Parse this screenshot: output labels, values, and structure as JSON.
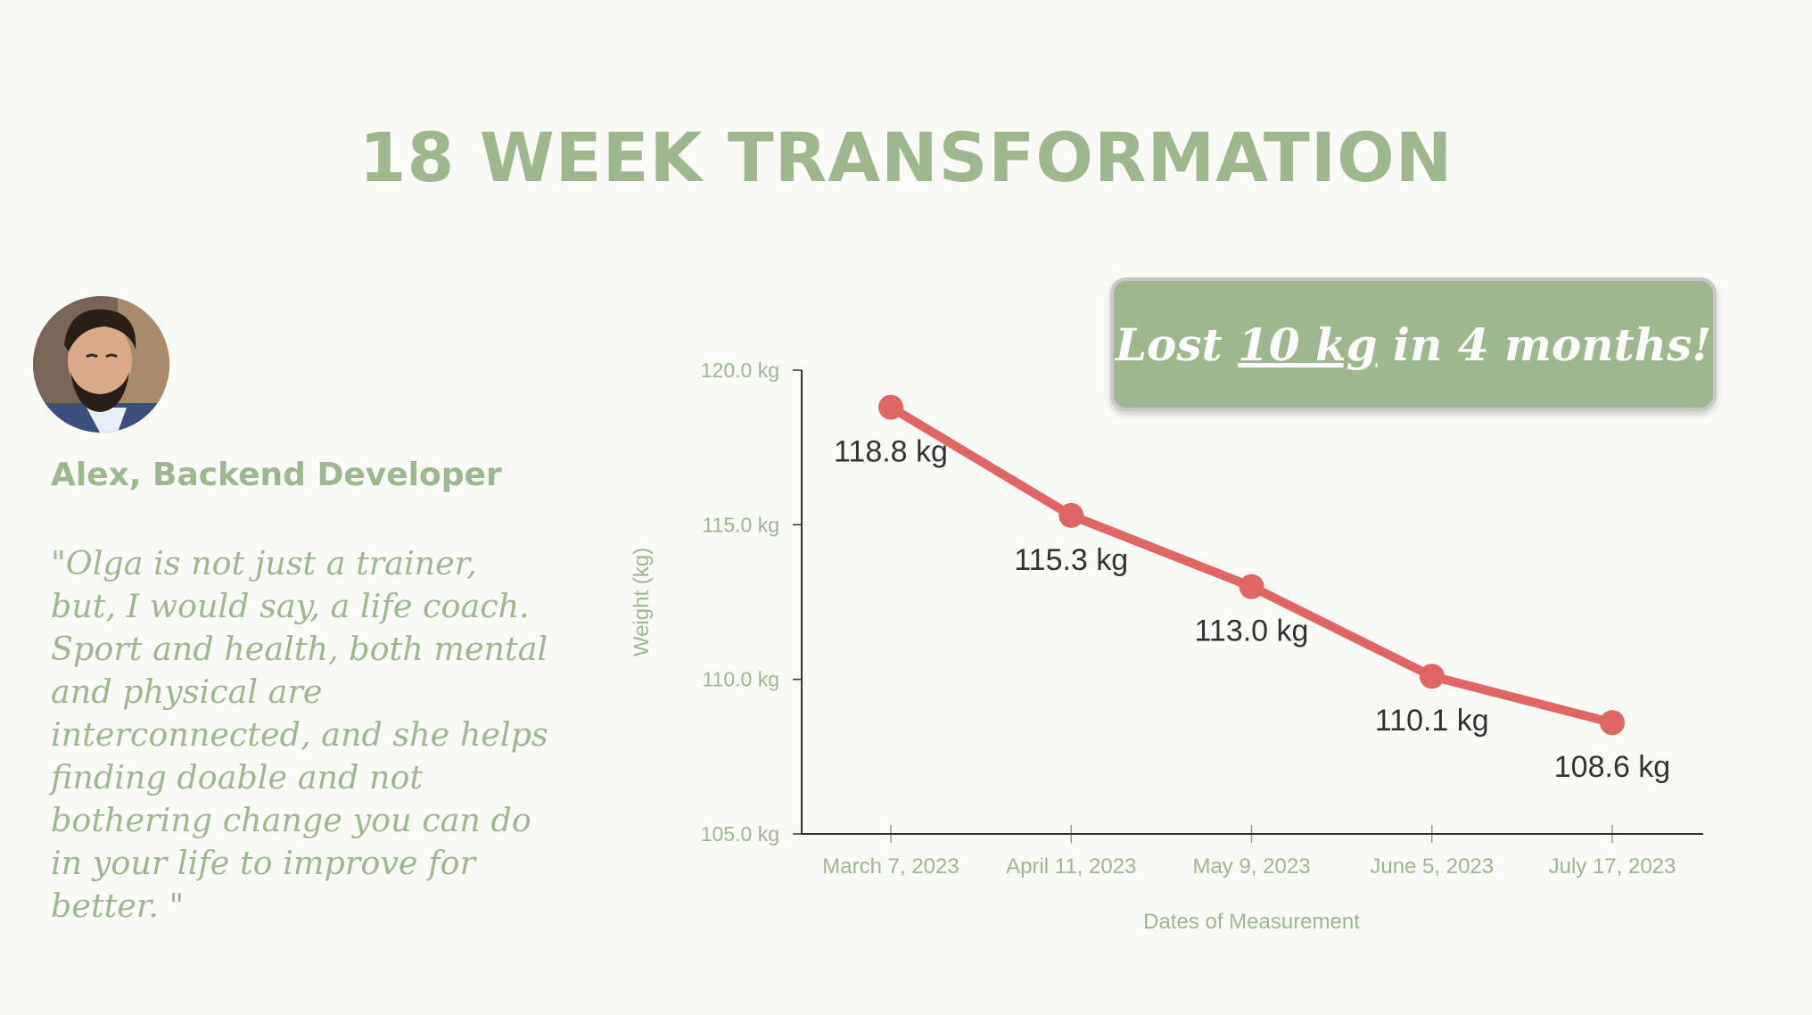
{
  "title": "18 WEEK TRANSFORMATION",
  "testimonial": {
    "author": "Alex, Backend Developer",
    "quote": "\"Olga is not just a trainer, but, I would say, a life coach. Sport and health, both mental and physical are interconnected, and she helps finding doable and not bothering change you can do in your life to improve for better. \""
  },
  "callout": {
    "prefix": "Lost ",
    "highlight": "10 kg",
    "suffix": " in 4 months!"
  },
  "colors": {
    "accent": "#9db78e",
    "line": "#e06666",
    "background": "#fafaf7"
  },
  "chart_data": {
    "type": "line",
    "title": "",
    "xlabel": "Dates of Measurement",
    "ylabel": "Weight (kg)",
    "categories": [
      "March 7, 2023",
      "April 11, 2023",
      "May 9, 2023",
      "June 5, 2023",
      "July 17, 2023"
    ],
    "series": [
      {
        "values": [
          118.8,
          115.3,
          113.0,
          110.1,
          108.6
        ],
        "labels": [
          "118.8 kg",
          "115.3 kg",
          "113.0 kg",
          "110.1 kg",
          "108.6 kg"
        ]
      }
    ],
    "ylim": [
      105,
      120
    ],
    "yticks": [
      120,
      115,
      110,
      105
    ],
    "ytick_labels": [
      "120.0 kg",
      "115.0 kg",
      "110.0 kg",
      "105.0 kg"
    ],
    "grid": false,
    "legend": "none"
  }
}
